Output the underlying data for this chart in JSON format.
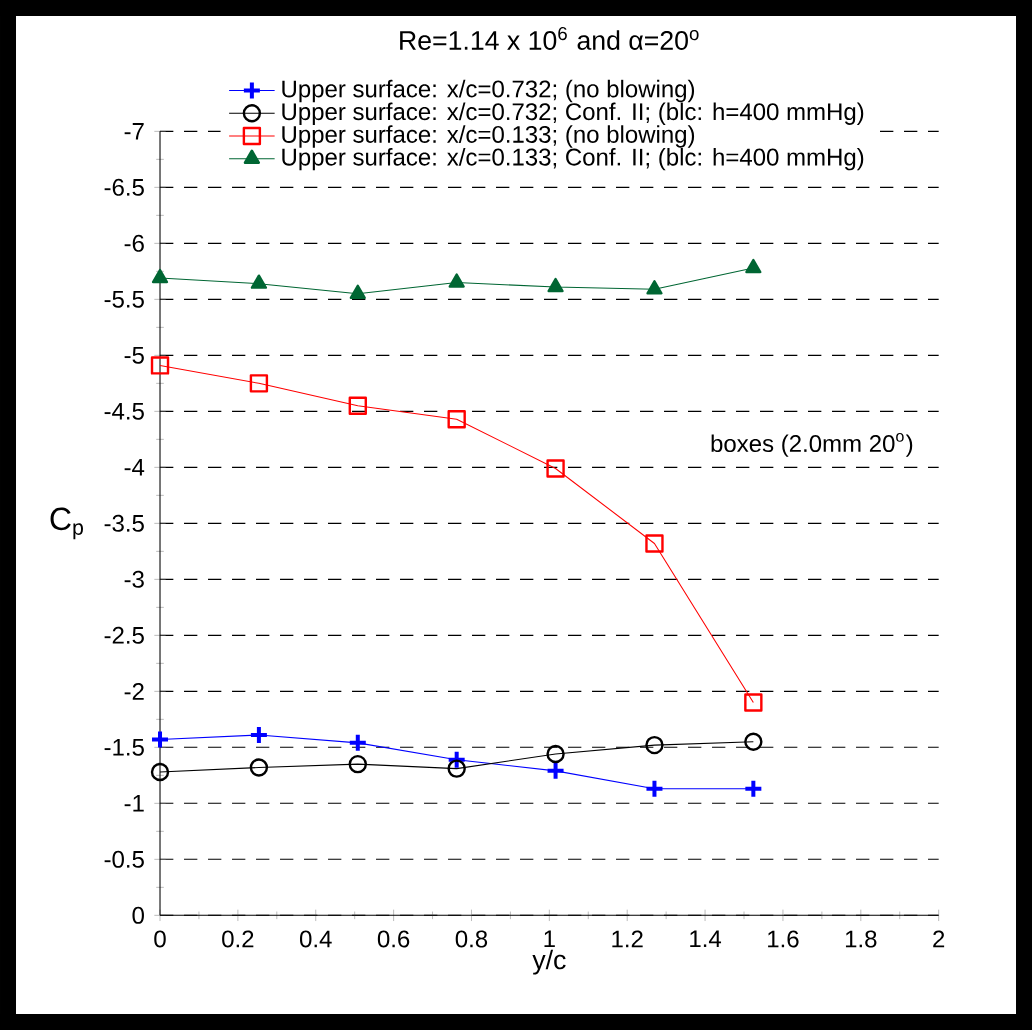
{
  "chart_data": {
    "type": "line",
    "title": "Re=1.14 x 10$^{6}$ and α=20$^{o}$",
    "xlabel": "y/c",
    "ylabel": "C$_{p}$",
    "x": [
      0,
      0.254,
      0.508,
      0.762,
      1.016,
      1.27,
      1.524
    ],
    "series": [
      {
        "name": "Upper surface: x/c=0.732; (no blowing)",
        "color": "#0000ff",
        "marker": "cross",
        "values": [
          -1.57,
          -1.61,
          -1.54,
          -1.39,
          -1.29,
          -1.13,
          -1.13
        ]
      },
      {
        "name": "Upper surface: x/c=0.732;  Conf. II; (blc: h=400 mmHg)",
        "color": "#000000",
        "marker": "circle",
        "values": [
          -1.28,
          -1.32,
          -1.35,
          -1.31,
          -1.44,
          -1.52,
          -1.55
        ]
      },
      {
        "name": "Upper surface: x/c=0.133; (no blowing)",
        "color": "#ff0000",
        "marker": "square",
        "values": [
          -4.91,
          -4.75,
          -4.55,
          -4.43,
          -3.99,
          -3.32,
          -1.9
        ]
      },
      {
        "name": "Upper surface: x/c=0.133;  Conf. II; (blc: h=400 mmHg)",
        "color": "#006633",
        "marker": "triangle",
        "values": [
          -5.69,
          -5.64,
          -5.55,
          -5.65,
          -5.61,
          -5.59,
          -5.78
        ]
      }
    ],
    "xlim": [
      0,
      2
    ],
    "xticks": [
      0,
      0.2,
      0.4,
      0.6,
      0.8,
      1,
      1.2,
      1.4,
      1.6,
      1.8,
      2
    ],
    "ylim": [
      0,
      -7
    ],
    "yticks": [
      0,
      -0.5,
      -1,
      -1.5,
      -2,
      -2.5,
      -3,
      -3.5,
      -4,
      -4.5,
      -5,
      -5.5,
      -6,
      -6.5,
      -7
    ],
    "grid": "y",
    "legend": "top",
    "line_style": "solid",
    "annotations": [
      "boxes (2.0mm  20$^{o}$)"
    ]
  }
}
